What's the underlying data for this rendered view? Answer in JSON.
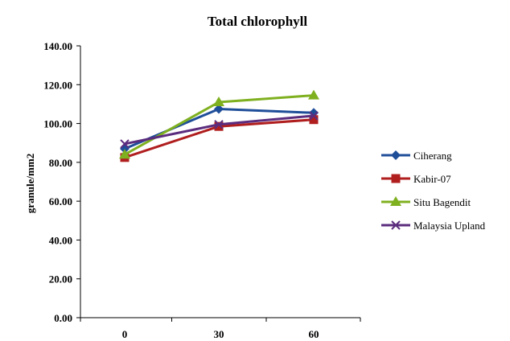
{
  "chart_data": {
    "type": "line",
    "title": "Total chlorophyll",
    "xlabel": "",
    "ylabel": "granule/mm2",
    "categories": [
      "0",
      "30",
      "60"
    ],
    "ylim": [
      0,
      140
    ],
    "yticks": [
      "0.00",
      "20.00",
      "40.00",
      "60.00",
      "80.00",
      "100.00",
      "120.00",
      "140.00"
    ],
    "grid": false,
    "legend_position": "right",
    "series": [
      {
        "name": "Ciherang",
        "values": [
          87,
          107.5,
          105.5
        ],
        "color": "#1F4E99",
        "marker": "diamond"
      },
      {
        "name": "Kabir-07",
        "values": [
          82.5,
          98.5,
          102
        ],
        "color": "#B01E1E",
        "marker": "square"
      },
      {
        "name": "Situ Bagendit",
        "values": [
          84,
          111,
          114.5
        ],
        "color": "#7FB020",
        "marker": "triangle"
      },
      {
        "name": "Malaysia Upland",
        "values": [
          89.5,
          99.5,
          104
        ],
        "color": "#5B2C7E",
        "marker": "x"
      }
    ]
  }
}
